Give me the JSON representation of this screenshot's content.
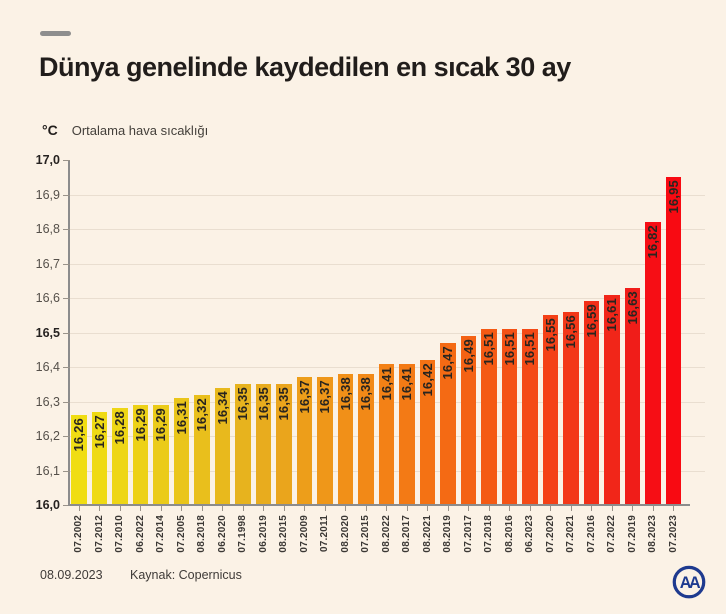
{
  "header": {
    "title": "Dünya genelinde kaydedilen en sıcak 30 ay"
  },
  "chart_data": {
    "type": "bar",
    "title": "Dünya genelinde kaydedilen en sıcak 30 ay",
    "unit_label": "°C",
    "subtitle": "Ortalama hava sıcaklığı",
    "categories": [
      "07.2002",
      "07.2012",
      "07.2010",
      "06.2022",
      "07.2014",
      "07.2005",
      "08.2018",
      "06.2020",
      "07.1998",
      "06.2019",
      "08.2015",
      "07.2009",
      "07.2011",
      "08.2020",
      "07.2015",
      "08.2022",
      "08.2017",
      "08.2021",
      "08.2019",
      "07.2017",
      "07.2018",
      "08.2016",
      "06.2023",
      "07.2020",
      "07.2021",
      "07.2016",
      "07.2022",
      "07.2019",
      "08.2023",
      "07.2023"
    ],
    "values": [
      16.26,
      16.27,
      16.28,
      16.29,
      16.29,
      16.31,
      16.32,
      16.34,
      16.35,
      16.35,
      16.35,
      16.37,
      16.37,
      16.38,
      16.38,
      16.41,
      16.41,
      16.42,
      16.47,
      16.49,
      16.51,
      16.51,
      16.51,
      16.55,
      16.56,
      16.59,
      16.61,
      16.63,
      16.82,
      16.95
    ],
    "value_labels": [
      "16,26",
      "16,27",
      "16,28",
      "16,29",
      "16,29",
      "16,31",
      "16,32",
      "16,34",
      "16,35",
      "16,35",
      "16,35",
      "16,37",
      "16,37",
      "16,38",
      "16,38",
      "16,41",
      "16,41",
      "16,42",
      "16,47",
      "16,49",
      "16,51",
      "16,51",
      "16,51",
      "16,55",
      "16,56",
      "16,59",
      "16,61",
      "16,63",
      "16,82",
      "16,95"
    ],
    "bar_colors": [
      "#F0DD13",
      "#EFDA14",
      "#EED616",
      "#EDD117",
      "#EBCB19",
      "#EAC51A",
      "#E9BF1C",
      "#E8B91D",
      "#E7B31E",
      "#E8AC1E",
      "#EAA51C",
      "#ED9E1A",
      "#EF9719",
      "#F19018",
      "#F28917",
      "#F38116",
      "#F37A15",
      "#F47214",
      "#F46A14",
      "#F46214",
      "#F45A14",
      "#F45215",
      "#F44A16",
      "#F44117",
      "#F33818",
      "#F22F18",
      "#F12619",
      "#F01D19",
      "#F60E15",
      "#F80A12"
    ],
    "ylim": [
      16.0,
      17.0
    ],
    "yticks": [
      {
        "label": "17,0",
        "value": 17.0,
        "bold": true
      },
      {
        "label": "16,9",
        "value": 16.9,
        "bold": false
      },
      {
        "label": "16,8",
        "value": 16.8,
        "bold": false
      },
      {
        "label": "16,7",
        "value": 16.7,
        "bold": false
      },
      {
        "label": "16,6",
        "value": 16.6,
        "bold": false
      },
      {
        "label": "16,5",
        "value": 16.5,
        "bold": true
      },
      {
        "label": "16,4",
        "value": 16.4,
        "bold": false
      },
      {
        "label": "16,3",
        "value": 16.3,
        "bold": false
      },
      {
        "label": "16,2",
        "value": 16.2,
        "bold": false
      },
      {
        "label": "16,1",
        "value": 16.1,
        "bold": false
      },
      {
        "label": "16,0",
        "value": 16.0,
        "bold": true
      }
    ],
    "grid": true,
    "legend_position": "none",
    "xlabel": "",
    "ylabel": "°C"
  },
  "footer": {
    "date": "08.09.2023",
    "source": "Kaynak: Copernicus",
    "logo_text": "AA"
  },
  "theme": {
    "background": "#FBF2E6",
    "grid_color": "#E9DED0",
    "axis_color": "#8C8C8C",
    "bar_label_color": "#29251F",
    "logo_color": "#1E3A8F"
  }
}
